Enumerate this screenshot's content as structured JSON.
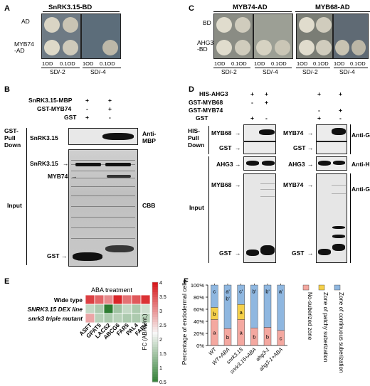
{
  "panelA": {
    "letter": "A",
    "header": "SnRK3.15-BD",
    "row1": "AD",
    "row2": "MYB74\n-AD",
    "dil1": "1OD",
    "dil2": "0.1OD",
    "dil3": "1OD",
    "dil4": "0.1OD",
    "media1": "SD/-2",
    "media2": "SD/-4"
  },
  "panelB": {
    "letter": "B",
    "label_mbp": "SnRK3.15-MBP",
    "label_gstmyb": "GST-MYB74",
    "label_gst": "GST",
    "signs_row1": [
      "+",
      "+"
    ],
    "signs_row2": [
      "-",
      "+"
    ],
    "signs_row3": [
      "+",
      "-"
    ],
    "pulldown": "GST-\nPull\nDown",
    "snrk_top": "SnRK3.15",
    "anti_mbp": "Anti-\nMBP",
    "snrk_input": "SnRK3.15",
    "myb74": "MYB74",
    "gst": "GST",
    "input": "Input",
    "cbb": "CBB"
  },
  "panelC": {
    "letter": "C",
    "header1": "MYB74-AD",
    "header2": "MYB68-AD",
    "row1": "BD",
    "row2": "AHG3\n-BD",
    "dils": [
      "1OD",
      "0.1OD",
      "1OD",
      "0.1OD",
      "1OD",
      "0.1OD",
      "1OD",
      "0.1OD"
    ],
    "media": [
      "SD/-2",
      "SD/-4",
      "SD/-2",
      "SD/-4"
    ]
  },
  "panelD": {
    "letter": "D",
    "his_ahg3": "HIS-AHG3",
    "gst_myb68": "GST-MYB68",
    "gst_myb74": "GST-MYB74",
    "gst": "GST",
    "signs_his": [
      "+",
      "+",
      "+",
      "+"
    ],
    "signs_myb68": [
      "-",
      "+",
      "",
      ""
    ],
    "signs_myb74": [
      "",
      "",
      "-",
      "+"
    ],
    "signs_gst": [
      "+",
      "-",
      "+",
      "-"
    ],
    "pulldown": "HIS-\nPull\nDown",
    "myb68_pd": "MYB68",
    "gst_pd": "GST",
    "myb74_pd": "MYB74",
    "gst_pd2": "GST",
    "anti_gst": "Anti-GST",
    "ahg3_l": "AHG3",
    "ahg3_r": "AHG3",
    "anti_his": "Anti-HIS",
    "myb68_in": "MYB68",
    "myb74_in": "MYB74",
    "anti_gst2": "Anti-GST",
    "input": "Input",
    "gst_in_l": "GST",
    "gst_in_r": "GST"
  },
  "panelE": {
    "letter": "E",
    "title": "ABA treatment",
    "rows": [
      "Wide type",
      "SNRK3.15 DEX line",
      "snrk3 triple mutant"
    ],
    "cols": [
      "ASFT",
      "GPAT5",
      "LACS2",
      "ABCG6",
      "FAR5",
      "PAL4",
      "FAR4"
    ],
    "values": [
      [
        3.7,
        3.4,
        3.1,
        3.9,
        3.3,
        3.5,
        3.8
      ],
      [
        1.8,
        1.6,
        0.5,
        1.5,
        1.8,
        1.6,
        1.9
      ],
      [
        2.9,
        1.7,
        1.6,
        1.7,
        1.6,
        1.6,
        1.7
      ]
    ],
    "scale_label": "FC (ABA/Unt.)",
    "scale_ticks": [
      "4",
      "3.5",
      "3",
      "2.5",
      "2",
      "1.5",
      "1",
      "0.5"
    ],
    "colors": {
      "high": "#d7191c",
      "mid": "#f7f7f7",
      "low": "#2e7d32"
    }
  },
  "panelF": {
    "letter": "F",
    "ylabel": "Percentage of endodermal cells",
    "yticks": [
      "0%",
      "20%",
      "40%",
      "60%",
      "80%",
      "100%"
    ],
    "legend": [
      "No-suberized zone",
      "Zone of patchy suberization",
      "Zone of continuous suberization"
    ],
    "colors": {
      "none": "#f4a8a0",
      "patchy": "#f5d04a",
      "continuous": "#8fb7e0"
    },
    "chart_data": {
      "type": "bar",
      "categories": [
        "WT",
        "WT+ABA",
        "snrk3.15",
        "snrk3.15+ABA",
        "ahg3-1",
        "ahg3-1+ABA"
      ],
      "series": [
        {
          "name": "No-suberized zone",
          "values": [
            43,
            28,
            43,
            29,
            30,
            25
          ]
        },
        {
          "name": "Zone of patchy suberization",
          "values": [
            20,
            0,
            25,
            0,
            0,
            0
          ]
        },
        {
          "name": "Zone of continuous suberization",
          "values": [
            37,
            72,
            32,
            71,
            70,
            75
          ]
        }
      ],
      "letters_bottom": [
        "a",
        "b",
        "a",
        "b",
        "b",
        "c"
      ],
      "letters_mid": [
        "b",
        "",
        "a",
        "",
        "",
        ""
      ],
      "letters_top": [
        "c",
        "a'",
        "c'",
        "b'",
        "b'",
        "a'"
      ],
      "letters_top2": [
        "",
        "b'",
        "",
        "",
        "",
        ""
      ],
      "ylim": [
        0,
        100
      ]
    }
  }
}
